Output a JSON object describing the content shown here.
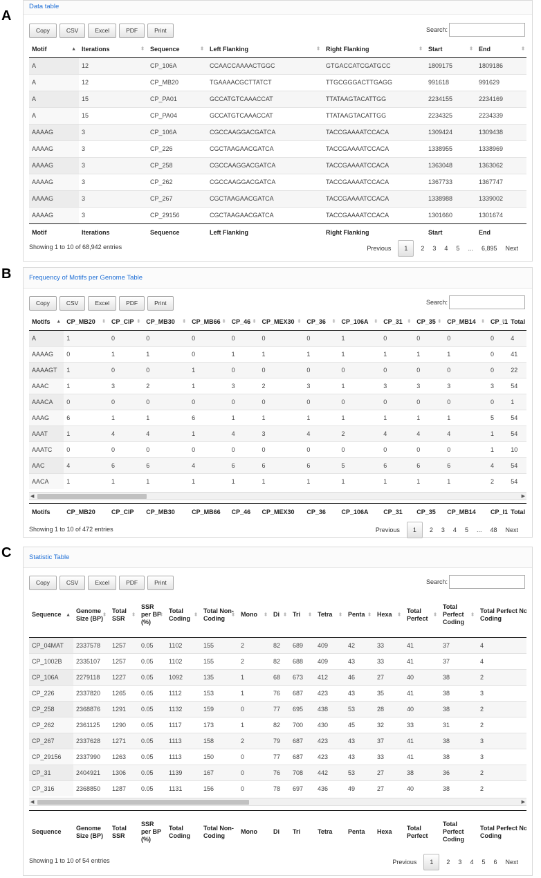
{
  "panels": [
    {
      "letter": "A",
      "title": "Data table",
      "buttons": [
        "Copy",
        "CSV",
        "Excel",
        "PDF",
        "Print"
      ],
      "search_label": "Search:",
      "search_value": "",
      "columns": [
        "Motif",
        "Iterations",
        "Sequence",
        "Left Flanking",
        "Right Flanking",
        "Start",
        "End"
      ],
      "rows": [
        [
          "A",
          "12",
          "CP_106A",
          "CCAACCAAAACTGGC",
          "GTGACCATCGATGCC",
          "1809175",
          "1809186"
        ],
        [
          "A",
          "12",
          "CP_MB20",
          "TGAAAACGCTTATCT",
          "TTGCGGGACTTGAGG",
          "991618",
          "991629"
        ],
        [
          "A",
          "15",
          "CP_PA01",
          "GCCATGTCAAACCAT",
          "TTATAAGTACATTGG",
          "2234155",
          "2234169"
        ],
        [
          "A",
          "15",
          "CP_PA04",
          "GCCATGTCAAACCAT",
          "TTATAAGTACATTGG",
          "2234325",
          "2234339"
        ],
        [
          "AAAAG",
          "3",
          "CP_106A",
          "CGCCAAGGACGATCA",
          "TACCGAAAATCCACA",
          "1309424",
          "1309438"
        ],
        [
          "AAAAG",
          "3",
          "CP_226",
          "CGCTAAGAACGATCA",
          "TACCGAAAATCCACA",
          "1338955",
          "1338969"
        ],
        [
          "AAAAG",
          "3",
          "CP_258",
          "CGCCAAGGACGATCA",
          "TACCGAAAATCCACA",
          "1363048",
          "1363062"
        ],
        [
          "AAAAG",
          "3",
          "CP_262",
          "CGCCAAGGACGATCA",
          "TACCGAAAATCCACA",
          "1367733",
          "1367747"
        ],
        [
          "AAAAG",
          "3",
          "CP_267",
          "CGCTAAGAACGATCA",
          "TACCGAAAATCCACA",
          "1338988",
          "1339002"
        ],
        [
          "AAAAG",
          "3",
          "CP_29156",
          "CGCTAAGAACGATCA",
          "TACCGAAAATCCACA",
          "1301660",
          "1301674"
        ]
      ],
      "info": "Showing 1 to 10 of 68,942 entries",
      "pager": [
        "Previous",
        "1",
        "2",
        "3",
        "4",
        "5",
        "...",
        "6,895",
        "Next"
      ]
    },
    {
      "letter": "B",
      "title": "Frequency of Motifs per Genome Table",
      "buttons": [
        "Copy",
        "CSV",
        "Excel",
        "PDF",
        "Print"
      ],
      "search_label": "Search:",
      "search_value": "",
      "columns": [
        "Motifs",
        "CP_MB20",
        "CP_CIP",
        "CP_MB30",
        "CP_MB66",
        "CP_46",
        "CP_MEX30",
        "CP_36",
        "CP_106A",
        "CP_31",
        "CP_35",
        "CP_MB14",
        "CP_I1",
        "Total"
      ],
      "rows": [
        [
          "A",
          "1",
          "0",
          "0",
          "0",
          "0",
          "0",
          "0",
          "1",
          "0",
          "0",
          "0",
          "0",
          "4"
        ],
        [
          "AAAAG",
          "0",
          "1",
          "1",
          "0",
          "1",
          "1",
          "1",
          "1",
          "1",
          "1",
          "1",
          "0",
          "41"
        ],
        [
          "AAAAGT",
          "1",
          "0",
          "0",
          "1",
          "0",
          "0",
          "0",
          "0",
          "0",
          "0",
          "0",
          "0",
          "22"
        ],
        [
          "AAAC",
          "1",
          "3",
          "2",
          "1",
          "3",
          "2",
          "3",
          "1",
          "3",
          "3",
          "3",
          "3",
          "54"
        ],
        [
          "AAACA",
          "0",
          "0",
          "0",
          "0",
          "0",
          "0",
          "0",
          "0",
          "0",
          "0",
          "0",
          "0",
          "1"
        ],
        [
          "AAAG",
          "6",
          "1",
          "1",
          "6",
          "1",
          "1",
          "1",
          "1",
          "1",
          "1",
          "1",
          "5",
          "54"
        ],
        [
          "AAAT",
          "1",
          "4",
          "4",
          "1",
          "4",
          "3",
          "4",
          "2",
          "4",
          "4",
          "4",
          "1",
          "54"
        ],
        [
          "AAATC",
          "0",
          "0",
          "0",
          "0",
          "0",
          "0",
          "0",
          "0",
          "0",
          "0",
          "0",
          "1",
          "10"
        ],
        [
          "AAC",
          "4",
          "6",
          "6",
          "4",
          "6",
          "6",
          "6",
          "5",
          "6",
          "6",
          "6",
          "4",
          "54"
        ],
        [
          "AACA",
          "1",
          "1",
          "1",
          "1",
          "1",
          "1",
          "1",
          "1",
          "1",
          "1",
          "1",
          "2",
          "54"
        ]
      ],
      "info": "Showing 1 to 10 of 472 entries",
      "pager": [
        "Previous",
        "1",
        "2",
        "3",
        "4",
        "5",
        "...",
        "48",
        "Next"
      ]
    },
    {
      "letter": "C",
      "title": "Statistic Table",
      "buttons": [
        "Copy",
        "CSV",
        "Excel",
        "PDF",
        "Print"
      ],
      "search_label": "Search:",
      "search_value": "",
      "columns": [
        "Sequence",
        "Genome Size (BP)",
        "Total SSR",
        "SSR per BP (%)",
        "Total Coding",
        "Total Non-Coding",
        "Mono",
        "Di",
        "Tri",
        "Tetra",
        "Penta",
        "Hexa",
        "Total Perfect",
        "Total Perfect Coding",
        "Total Perfect Non-Coding"
      ],
      "rows": [
        [
          "CP_04MAT",
          "2337578",
          "1257",
          "0.05",
          "1102",
          "155",
          "2",
          "82",
          "689",
          "409",
          "42",
          "33",
          "41",
          "37",
          "4"
        ],
        [
          "CP_1002B",
          "2335107",
          "1257",
          "0.05",
          "1102",
          "155",
          "2",
          "82",
          "688",
          "409",
          "43",
          "33",
          "41",
          "37",
          "4"
        ],
        [
          "CP_106A",
          "2279118",
          "1227",
          "0.05",
          "1092",
          "135",
          "1",
          "68",
          "673",
          "412",
          "46",
          "27",
          "40",
          "38",
          "2"
        ],
        [
          "CP_226",
          "2337820",
          "1265",
          "0.05",
          "1112",
          "153",
          "1",
          "76",
          "687",
          "423",
          "43",
          "35",
          "41",
          "38",
          "3"
        ],
        [
          "CP_258",
          "2368876",
          "1291",
          "0.05",
          "1132",
          "159",
          "0",
          "77",
          "695",
          "438",
          "53",
          "28",
          "40",
          "38",
          "2"
        ],
        [
          "CP_262",
          "2361125",
          "1290",
          "0.05",
          "1117",
          "173",
          "1",
          "82",
          "700",
          "430",
          "45",
          "32",
          "33",
          "31",
          "2"
        ],
        [
          "CP_267",
          "2337628",
          "1271",
          "0.05",
          "1113",
          "158",
          "2",
          "79",
          "687",
          "423",
          "43",
          "37",
          "41",
          "38",
          "3"
        ],
        [
          "CP_29156",
          "2337990",
          "1263",
          "0.05",
          "1113",
          "150",
          "0",
          "77",
          "687",
          "423",
          "43",
          "33",
          "41",
          "38",
          "3"
        ],
        [
          "CP_31",
          "2404921",
          "1306",
          "0.05",
          "1139",
          "167",
          "0",
          "76",
          "708",
          "442",
          "53",
          "27",
          "38",
          "36",
          "2"
        ],
        [
          "CP_316",
          "2368850",
          "1287",
          "0.05",
          "1131",
          "156",
          "0",
          "78",
          "697",
          "436",
          "49",
          "27",
          "40",
          "38",
          "2"
        ]
      ],
      "info": "Showing 1 to 10 of 54 entries",
      "pager": [
        "Previous",
        "1",
        "2",
        "3",
        "4",
        "5",
        "6",
        "Next"
      ]
    }
  ]
}
